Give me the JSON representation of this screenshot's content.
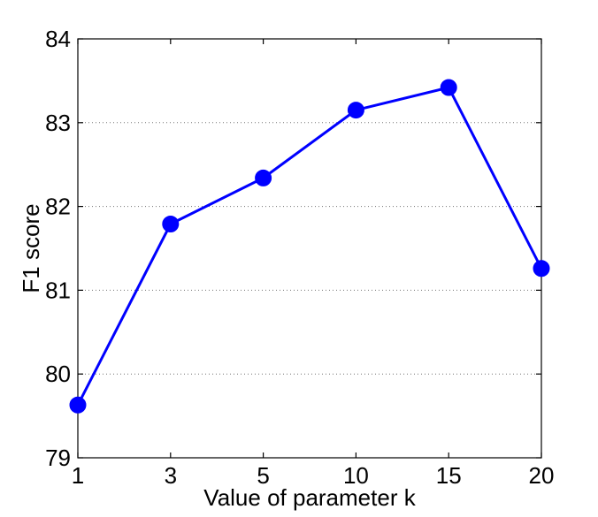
{
  "chart_data": {
    "type": "line",
    "title": "",
    "xlabel": "Value of parameter k",
    "ylabel": "F1 score",
    "categories": [
      "1",
      "3",
      "5",
      "10",
      "15",
      "20"
    ],
    "series": [
      {
        "values": [
          79.63,
          81.79,
          82.34,
          83.15,
          83.42,
          81.26
        ],
        "color": "#0000ff",
        "marker": "filled-circle"
      }
    ],
    "ylim": [
      79,
      84
    ],
    "yticks": [
      "79",
      "80",
      "81",
      "82",
      "83",
      "84"
    ],
    "grid": "horizontal dotted",
    "legend": "none"
  }
}
